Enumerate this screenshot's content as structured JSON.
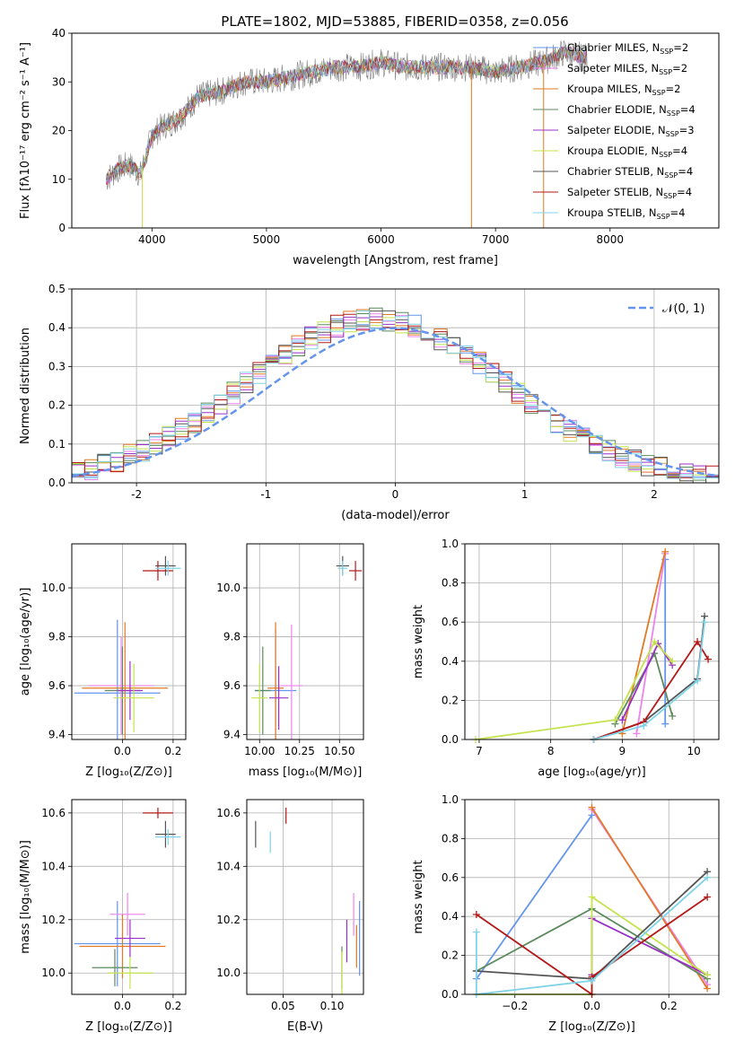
{
  "figure_title": "PLATE=1802, MJD=53885, FIBERID=0358, z=0.056",
  "colors": {
    "s0": "#6495ed",
    "s1": "#ee82ee",
    "s2": "#e27a24",
    "s3": "#5d8a5d",
    "s4": "#9b30c8",
    "s5": "#c4e34e",
    "s6": "#555555",
    "s7": "#b51818",
    "s8": "#7fd3e8",
    "spectrum": "#808080"
  },
  "chart_data": [
    {
      "id": "spectrum",
      "type": "line",
      "xlabel": "wavelength [Angstrom, rest frame]",
      "ylabel": "Flux [fλ10⁻¹⁷ erg cm⁻² s⁻¹ A⁻¹]",
      "xlim": [
        3300,
        8950
      ],
      "ylim": [
        0,
        40
      ],
      "xticks": [
        4000,
        5000,
        6000,
        7000,
        8000
      ],
      "yticks": [
        0,
        10,
        20,
        30,
        40
      ],
      "grid": false,
      "legend_position": "top-right",
      "continuum": {
        "x": [
          3600,
          3700,
          3800,
          3900,
          4000,
          4100,
          4200,
          4300,
          4400,
          4600,
          4800,
          5000,
          5200,
          5400,
          5600,
          5800,
          6000,
          6200,
          6400,
          6600,
          6800,
          7000,
          7200,
          7400,
          7600,
          7800
        ],
        "y": [
          10,
          12,
          13,
          11,
          19,
          21,
          22,
          24,
          27,
          28,
          30,
          30,
          31,
          32,
          33,
          33,
          34,
          33,
          33,
          33,
          33,
          32,
          33,
          34,
          36,
          35
        ]
      },
      "legend": [
        {
          "label": "Chabrier MILES, N",
          "sub": "SSP",
          "value": "=2",
          "color": "s0"
        },
        {
          "label": "Salpeter MILES, N",
          "sub": "SSP",
          "value": "=2",
          "color": "s1"
        },
        {
          "label": "Kroupa MILES, N",
          "sub": "SSP",
          "value": "=2",
          "color": "s2"
        },
        {
          "label": "Chabrier ELODIE, N",
          "sub": "SSP",
          "value": "=4",
          "color": "s3"
        },
        {
          "label": "Salpeter ELODIE, N",
          "sub": "SSP",
          "value": "=3",
          "color": "s4"
        },
        {
          "label": "Kroupa ELODIE, N",
          "sub": "SSP",
          "value": "=4",
          "color": "s5"
        },
        {
          "label": "Chabrier STELIB, N",
          "sub": "SSP",
          "value": "=4",
          "color": "s6"
        },
        {
          "label": "Salpeter STELIB, N",
          "sub": "SSP",
          "value": "=4",
          "color": "s7"
        },
        {
          "label": "Kroupa STELIB, N",
          "sub": "SSP",
          "value": "=4",
          "color": "s8"
        }
      ]
    },
    {
      "id": "residuals",
      "type": "line",
      "xlabel": "(data-model)/error",
      "ylabel": "Normed distribution",
      "xlim": [
        -2.5,
        2.5
      ],
      "ylim": [
        0,
        0.5
      ],
      "xticks": [
        -2,
        -1,
        0,
        1,
        2
      ],
      "yticks": [
        0.0,
        0.1,
        0.2,
        0.3,
        0.4,
        0.5
      ],
      "ytick_labels": [
        "0.0",
        "0.1",
        "0.2",
        "0.3",
        "0.4",
        "0.5"
      ],
      "grid": true,
      "legend_position": "top-right",
      "gauss_label": "𝒩(0, 1)",
      "hist_bins": [
        -2.5,
        2.5,
        0.1
      ],
      "histogram_shape": "approximately normal, peak ~0.42 near x=-0.2"
    },
    {
      "id": "age_vs_Z",
      "type": "scatter",
      "xlabel": "Z [log₁₀(Z/Z⊙)]",
      "ylabel": "age  [log₁₀(age/yr)]",
      "xlim": [
        -0.2,
        0.25
      ],
      "ylim": [
        9.38,
        10.18
      ],
      "xticks": [
        0.0,
        0.2
      ],
      "xtick_labels": [
        "0.0",
        "0.2"
      ],
      "yticks": [
        9.4,
        9.6,
        9.8,
        10.0
      ],
      "ytick_labels": [
        "9.4",
        "9.6",
        "9.8",
        "10.0"
      ],
      "grid": true,
      "points": [
        {
          "c": "s0",
          "x": -0.02,
          "xerr": 0.17,
          "y": 9.57,
          "yerr": 0.3
        },
        {
          "c": "s1",
          "x": -0.005,
          "xerr": 0.13,
          "y": 9.6,
          "yerr": 0.2
        },
        {
          "c": "s2",
          "x": 0.01,
          "xerr": 0.17,
          "y": 9.59,
          "yerr": 0.27
        },
        {
          "c": "s3",
          "x": 0.0,
          "xerr": 0.07,
          "y": 9.58,
          "yerr": 0.18
        },
        {
          "c": "s4",
          "x": 0.03,
          "xerr": 0.05,
          "y": 9.58,
          "yerr": 0.12
        },
        {
          "c": "s5",
          "x": 0.045,
          "xerr": 0.08,
          "y": 9.55,
          "yerr": 0.14
        },
        {
          "c": "s6",
          "x": 0.17,
          "xerr": 0.04,
          "y": 10.09,
          "yerr": 0.04
        },
        {
          "c": "s7",
          "x": 0.14,
          "xerr": 0.06,
          "y": 10.07,
          "yerr": 0.04
        },
        {
          "c": "s8",
          "x": 0.18,
          "xerr": 0.05,
          "y": 10.08,
          "yerr": 0.03
        }
      ]
    },
    {
      "id": "age_vs_mass",
      "type": "scatter",
      "xlabel": "mass [log₁₀(M/M⊙)]",
      "ylabel": "",
      "xlim": [
        9.92,
        10.65
      ],
      "ylim": [
        9.38,
        10.18
      ],
      "xticks": [
        10.0,
        10.25,
        10.5
      ],
      "xtick_labels": [
        "10.00",
        "10.25",
        "10.50"
      ],
      "yticks": [
        9.4,
        9.6,
        9.8,
        10.0
      ],
      "ytick_labels": [
        "9.4",
        "9.6",
        "9.8",
        "10.0"
      ],
      "grid": true,
      "points": [
        {
          "c": "s0",
          "x": 10.1,
          "xerr": 0.13,
          "y": 9.58,
          "yerr": 0.25
        },
        {
          "c": "s1",
          "x": 10.2,
          "xerr": 0.07,
          "y": 9.6,
          "yerr": 0.25
        },
        {
          "c": "s2",
          "x": 10.1,
          "xerr": 0.05,
          "y": 9.59,
          "yerr": 0.27
        },
        {
          "c": "s3",
          "x": 10.02,
          "xerr": 0.05,
          "y": 9.58,
          "yerr": 0.18
        },
        {
          "c": "s4",
          "x": 10.12,
          "xerr": 0.06,
          "y": 9.55,
          "yerr": 0.13
        },
        {
          "c": "s5",
          "x": 10.0,
          "xerr": 0.05,
          "y": 9.55,
          "yerr": 0.14
        },
        {
          "c": "s6",
          "x": 10.52,
          "xerr": 0.04,
          "y": 10.09,
          "yerr": 0.04
        },
        {
          "c": "s7",
          "x": 10.6,
          "xerr": 0.04,
          "y": 10.07,
          "yerr": 0.04
        },
        {
          "c": "s8",
          "x": 10.52,
          "xerr": 0.03,
          "y": 10.08,
          "yerr": 0.03
        }
      ]
    },
    {
      "id": "mw_vs_age",
      "type": "line",
      "xlabel": "age  [log₁₀(age/yr)]",
      "ylabel": "mass weight",
      "xlim": [
        6.8,
        10.35
      ],
      "ylim": [
        0,
        1.0
      ],
      "xticks": [
        7,
        8,
        9,
        10
      ],
      "xtick_labels": [
        "7",
        "8",
        "9",
        "10"
      ],
      "yticks": [
        0,
        0.2,
        0.4,
        0.6,
        0.8,
        1.0
      ],
      "ytick_labels": [
        "0.0",
        "0.2",
        "0.4",
        "0.6",
        "0.8",
        "1.0"
      ],
      "grid": true,
      "series": [
        {
          "c": "s0",
          "x": [
            9.6,
            9.6
          ],
          "y": [
            0.08,
            0.92
          ]
        },
        {
          "c": "s1",
          "x": [
            9.2,
            9.6
          ],
          "y": [
            0.03,
            0.95
          ]
        },
        {
          "c": "s2",
          "x": [
            9.0,
            9.6
          ],
          "y": [
            0.03,
            0.96
          ]
        },
        {
          "c": "s3",
          "x": [
            8.9,
            9.45,
            9.7
          ],
          "y": [
            0.08,
            0.44,
            0.12
          ]
        },
        {
          "c": "s4",
          "x": [
            9.0,
            9.5,
            9.7
          ],
          "y": [
            0.1,
            0.49,
            0.38
          ]
        },
        {
          "c": "s5",
          "x": [
            6.95,
            8.9,
            9.45,
            9.7
          ],
          "y": [
            0.0,
            0.1,
            0.5,
            0.4
          ]
        },
        {
          "c": "s6",
          "x": [
            8.6,
            9.3,
            10.05,
            10.15
          ],
          "y": [
            0.0,
            0.09,
            0.31,
            0.63
          ]
        },
        {
          "c": "s7",
          "x": [
            8.6,
            9.3,
            10.05,
            10.2
          ],
          "y": [
            0.0,
            0.09,
            0.5,
            0.41
          ]
        },
        {
          "c": "s8",
          "x": [
            8.6,
            9.3,
            10.05,
            10.15
          ],
          "y": [
            0.0,
            0.07,
            0.3,
            0.6
          ]
        }
      ]
    },
    {
      "id": "mass_vs_Z",
      "type": "scatter",
      "xlabel": "Z [log₁₀(Z/Z⊙)]",
      "ylabel": "mass [log₁₀(M/M⊙)]",
      "xlim": [
        -0.2,
        0.25
      ],
      "ylim": [
        9.92,
        10.65
      ],
      "xticks": [
        0.0,
        0.2
      ],
      "xtick_labels": [
        "0.0",
        "0.2"
      ],
      "yticks": [
        10.0,
        10.2,
        10.4,
        10.6
      ],
      "ytick_labels": [
        "10.0",
        "10.2",
        "10.4",
        "10.6"
      ],
      "grid": true,
      "points": [
        {
          "c": "s0",
          "x": -0.02,
          "xerr": 0.17,
          "y": 10.11,
          "yerr": 0.16
        },
        {
          "c": "s1",
          "x": 0.02,
          "xerr": 0.07,
          "y": 10.22,
          "yerr": 0.08
        },
        {
          "c": "s2",
          "x": 0.0,
          "xerr": 0.17,
          "y": 10.1,
          "yerr": 0.12
        },
        {
          "c": "s3",
          "x": -0.03,
          "xerr": 0.09,
          "y": 10.02,
          "yerr": 0.07
        },
        {
          "c": "s4",
          "x": 0.03,
          "xerr": 0.06,
          "y": 10.13,
          "yerr": 0.07
        },
        {
          "c": "s5",
          "x": 0.03,
          "xerr": 0.09,
          "y": 10.0,
          "yerr": 0.06
        },
        {
          "c": "s6",
          "x": 0.17,
          "xerr": 0.04,
          "y": 10.52,
          "yerr": 0.05
        },
        {
          "c": "s7",
          "x": 0.14,
          "xerr": 0.06,
          "y": 10.6,
          "yerr": 0.02
        },
        {
          "c": "s8",
          "x": 0.18,
          "xerr": 0.05,
          "y": 10.51,
          "yerr": 0.03
        }
      ]
    },
    {
      "id": "mass_vs_ebv",
      "type": "scatter",
      "xlabel": "E(B-V)",
      "ylabel": "",
      "xlim": [
        0.013,
        0.132
      ],
      "ylim": [
        9.92,
        10.65
      ],
      "xticks": [
        0.05,
        0.1
      ],
      "xtick_labels": [
        "0.05",
        "0.10"
      ],
      "yticks": [
        10.0,
        10.2,
        10.4,
        10.6
      ],
      "ytick_labels": [
        "10.0",
        "10.2",
        "10.4",
        "10.6"
      ],
      "grid": true,
      "points": [
        {
          "c": "s0",
          "x": 0.128,
          "xerr": 0.0,
          "y": 10.13,
          "yerr": 0.14
        },
        {
          "c": "s1",
          "x": 0.122,
          "xerr": 0.0,
          "y": 10.22,
          "yerr": 0.08
        },
        {
          "c": "s2",
          "x": 0.125,
          "xerr": 0.0,
          "y": 10.1,
          "yerr": 0.08
        },
        {
          "c": "s3",
          "x": 0.11,
          "xerr": 0.0,
          "y": 10.02,
          "yerr": 0.08
        },
        {
          "c": "s4",
          "x": 0.115,
          "xerr": 0.0,
          "y": 10.12,
          "yerr": 0.08
        },
        {
          "c": "s5",
          "x": 0.11,
          "xerr": 0.0,
          "y": 10.0,
          "yerr": 0.08
        },
        {
          "c": "s6",
          "x": 0.022,
          "xerr": 0.0,
          "y": 10.52,
          "yerr": 0.05
        },
        {
          "c": "s7",
          "x": 0.053,
          "xerr": 0.0,
          "y": 10.59,
          "yerr": 0.03
        },
        {
          "c": "s8",
          "x": 0.037,
          "xerr": 0.0,
          "y": 10.49,
          "yerr": 0.04
        }
      ]
    },
    {
      "id": "mw_vs_Z",
      "type": "line",
      "xlabel": "Z [log₁₀(Z/Z⊙)]",
      "ylabel": "mass weight",
      "xlim": [
        -0.33,
        0.33
      ],
      "ylim": [
        0,
        1.0
      ],
      "xticks": [
        -0.2,
        0.0,
        0.2
      ],
      "xtick_labels": [
        "−0.2",
        "0.0",
        "0.2"
      ],
      "yticks": [
        0,
        0.2,
        0.4,
        0.6,
        0.8,
        1.0
      ],
      "ytick_labels": [
        "0.0",
        "0.2",
        "0.4",
        "0.6",
        "0.8",
        "1.0"
      ],
      "grid": true,
      "series": [
        {
          "c": "s0",
          "x": [
            -0.3,
            0.0
          ],
          "y": [
            0.08,
            0.92
          ]
        },
        {
          "c": "s1",
          "x": [
            0.0,
            0.3
          ],
          "y": [
            0.95,
            0.05
          ]
        },
        {
          "c": "s2",
          "x": [
            0.0,
            0.3
          ],
          "y": [
            0.96,
            0.03
          ]
        },
        {
          "c": "s3",
          "x": [
            -0.3,
            0.0,
            0.3
          ],
          "y": [
            0.12,
            0.44,
            0.08
          ]
        },
        {
          "c": "s4",
          "x": [
            0.0,
            0.0,
            0.3
          ],
          "y": [
            0.1,
            0.39,
            0.1
          ]
        },
        {
          "c": "s5",
          "x": [
            -0.3,
            0.0,
            0.0,
            0.3
          ],
          "y": [
            0.0,
            0.0,
            0.5,
            0.1
          ]
        },
        {
          "c": "s6",
          "x": [
            -0.3,
            0.0,
            0.3
          ],
          "y": [
            0.12,
            0.08,
            0.63
          ]
        },
        {
          "c": "s7",
          "x": [
            -0.3,
            0.0,
            0.0,
            0.3
          ],
          "y": [
            0.41,
            0.0,
            0.09,
            0.5
          ]
        },
        {
          "c": "s8",
          "x": [
            -0.3,
            -0.3,
            0.0,
            0.3
          ],
          "y": [
            0.32,
            0.0,
            0.07,
            0.6
          ]
        }
      ]
    }
  ]
}
